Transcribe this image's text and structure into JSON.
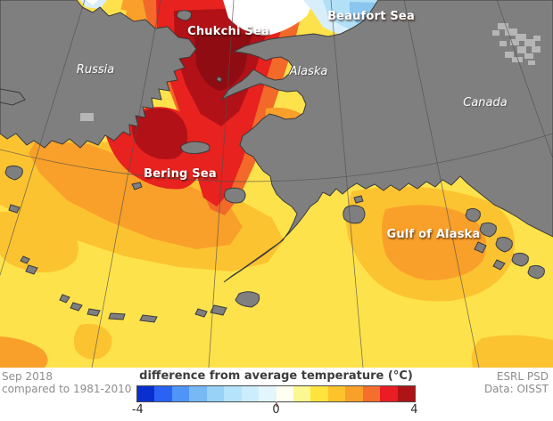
{
  "map": {
    "labels": {
      "chukchi_sea": "Chukchi Sea",
      "beaufort_sea": "Beaufort Sea",
      "bering_sea": "Bering Sea",
      "gulf_of_alaska": "Gulf of Alaska",
      "russia": "Russia",
      "alaska": "Alaska",
      "canada": "Canada"
    },
    "palette": {
      "land": "#7f7f7f",
      "land_light": "#b6b6b6",
      "coast": "#3b3b3b",
      "graticule": "#4f4f4f",
      "sea_yellow": "#fee24c",
      "sea_light_orange": "#fcc331",
      "sea_orange": "#f9a02a",
      "sea_deep_orange": "#f2692a",
      "sea_red": "#e7221f",
      "sea_dark_red": "#b11117",
      "sea_darkest_red": "#8f0d12",
      "sea_white": "#ffffff",
      "sea_pale_blue": "#d8effb",
      "sea_light_blue": "#b2e0f7",
      "sea_mid_blue": "#8ac6ee",
      "sea_deep_blue": "#55a3d9"
    }
  },
  "colorbar": {
    "title": "difference from average temperature (°C)",
    "unit": "°C",
    "min": -4,
    "max": 4,
    "tick_labels": [
      "-4",
      "0",
      "4"
    ],
    "segment_colors": [
      "#0a2fd0",
      "#2a63f3",
      "#4f95f7",
      "#77b8f5",
      "#98d2f6",
      "#b5e3fa",
      "#ccedfb",
      "#e3f6fd",
      "#fffef0",
      "#fbf892",
      "#ffe43d",
      "#fcc32d",
      "#f9a02b",
      "#f36f2b",
      "#e91d23",
      "#ae1318"
    ]
  },
  "footer": {
    "period": "Sep 2018",
    "baseline": "compared to 1981-2010",
    "credit_line1": "ESRL PSD",
    "credit_line2": "Data: OISST"
  }
}
